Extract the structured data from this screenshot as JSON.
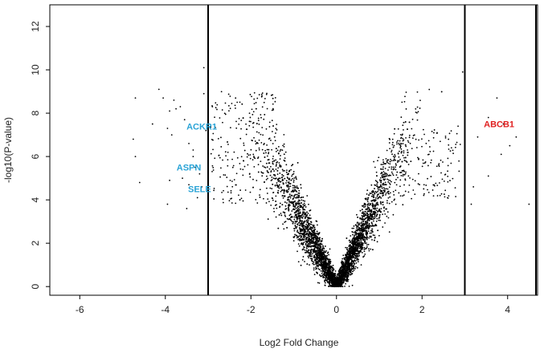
{
  "chart_data": {
    "type": "scatter",
    "title": "",
    "xlabel": "Log2 Fold Change",
    "ylabel": "-log10(P-value)",
    "xlim": [
      -6.7,
      4.7
    ],
    "ylim": [
      -0.4,
      13.0
    ],
    "x_ticks": [
      -6,
      -4,
      -2,
      0,
      2,
      4
    ],
    "y_ticks": [
      0,
      2,
      4,
      6,
      8,
      10,
      12
    ],
    "grid": false,
    "legend": "none",
    "point_color": "#000000",
    "thresholds": {
      "vertical_lines_x": [
        -3,
        3
      ],
      "note": "vertical threshold lines at log2FC = -3 and +3"
    },
    "series": [
      {
        "points_left_notable": [
          [
            -4.7,
            8.7
          ],
          [
            -4.75,
            6.8
          ],
          [
            -4.7,
            6.0
          ],
          [
            -4.6,
            4.8
          ],
          [
            -4.3,
            7.5
          ],
          [
            -4.15,
            9.1
          ],
          [
            -4.05,
            8.7
          ],
          [
            -3.95,
            7.3
          ],
          [
            -3.9,
            8.1
          ],
          [
            -3.85,
            7.0
          ],
          [
            -3.8,
            8.6
          ],
          [
            -3.75,
            8.2
          ],
          [
            -3.65,
            8.3
          ],
          [
            -3.55,
            7.7
          ],
          [
            -3.45,
            6.6
          ],
          [
            -3.35,
            6.0
          ],
          [
            -3.3,
            5.5
          ],
          [
            -3.25,
            4.1
          ],
          [
            -3.2,
            5.2
          ],
          [
            -3.15,
            4.6
          ],
          [
            -3.1,
            8.9
          ],
          [
            -3.05,
            7.2
          ],
          [
            -3.1,
            10.1
          ],
          [
            -3.0,
            3.5
          ],
          [
            -3.5,
            3.6
          ],
          [
            -3.6,
            5.0
          ],
          [
            -3.9,
            4.9
          ],
          [
            -3.95,
            3.8
          ],
          [
            -3.45,
            4.7
          ],
          [
            -3.35,
            6.3
          ]
        ],
        "points_right_notable": [
          [
            3.3,
            6.9
          ],
          [
            3.75,
            8.7
          ],
          [
            3.9,
            7.5
          ],
          [
            3.85,
            6.1
          ],
          [
            3.55,
            5.1
          ],
          [
            4.05,
            6.5
          ],
          [
            4.2,
            6.9
          ],
          [
            4.5,
            3.8
          ],
          [
            3.2,
            4.6
          ],
          [
            3.15,
            3.8
          ],
          [
            3.55,
            7.8
          ],
          [
            2.95,
            9.9
          ]
        ]
      }
    ],
    "annotations": [
      {
        "text": "ACKR1",
        "x": -3.15,
        "y": 7.4,
        "color": "#29a3d6"
      },
      {
        "text": "ASPN",
        "x": -3.45,
        "y": 5.5,
        "color": "#29a3d6"
      },
      {
        "text": "SELE",
        "x": -3.2,
        "y": 4.5,
        "color": "#29a3d6"
      },
      {
        "text": "ABCB1",
        "x": 3.8,
        "y": 7.5,
        "color": "#e02020"
      }
    ]
  }
}
